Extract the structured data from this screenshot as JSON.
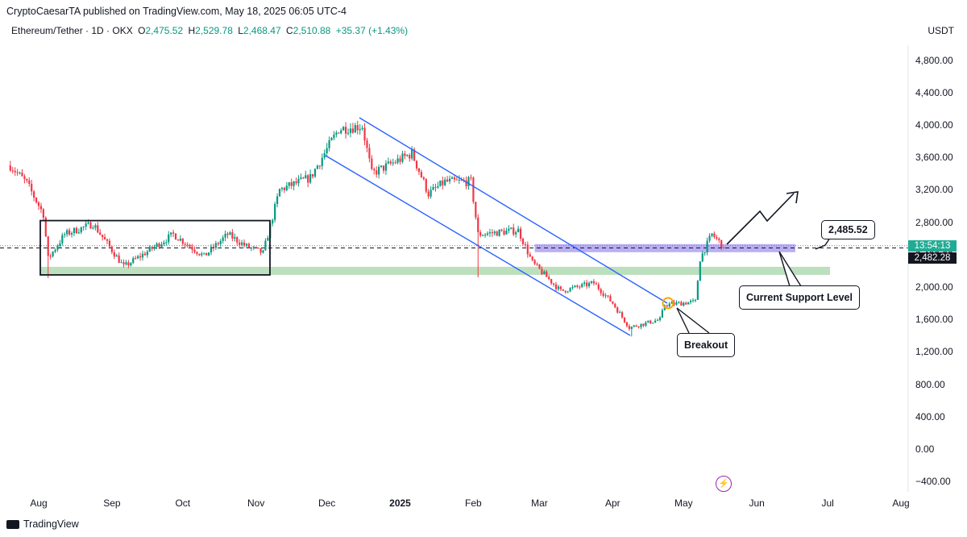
{
  "header": {
    "published": "CryptoCaesarTA published on TradingView.com, May 18, 2025 06:05 UTC-4",
    "symbol": "Ethereum/Tether · 1D · OKX",
    "open_label": "O",
    "open": "2,475.52",
    "high_label": "H",
    "high": "2,529.78",
    "low_label": "L",
    "low": "2,468.47",
    "close_label": "C",
    "close": "2,510.88",
    "change": "+35.37 (+1.43%)",
    "currency": "USDT"
  },
  "price_badges": {
    "countdown": "13:54:13",
    "last_price": "2,482.28"
  },
  "footer": {
    "brand": "TradingView"
  },
  "colors": {
    "up": "#089981",
    "down": "#f23645",
    "channel": "#2962ff",
    "zone_purple": "#9c8cf0",
    "zone_green": "#a5d6a7",
    "accent_badge": "#22ab94"
  },
  "chart_data": {
    "type": "candlestick",
    "ylim": [
      -400,
      5200
    ],
    "y_ticks": [
      "4,800.00",
      "4,400.00",
      "4,000.00",
      "3,600.00",
      "3,200.00",
      "2,800.00",
      "2,400.00",
      "2,000.00",
      "1,600.00",
      "1,200.00",
      "800.00",
      "400.00",
      "0.00",
      "−400.00"
    ],
    "y_tick_values": [
      4800,
      4400,
      4000,
      3600,
      3200,
      2800,
      2400,
      2000,
      1600,
      1200,
      800,
      400,
      0,
      -400
    ],
    "x_ticks": [
      {
        "label": "Aug",
        "date": "2024-08-01"
      },
      {
        "label": "Sep",
        "date": "2024-09-01"
      },
      {
        "label": "Oct",
        "date": "2024-10-01"
      },
      {
        "label": "Nov",
        "date": "2024-11-01"
      },
      {
        "label": "Dec",
        "date": "2024-12-01"
      },
      {
        "label": "2025",
        "date": "2025-01-01",
        "bold": true
      },
      {
        "label": "Feb",
        "date": "2025-02-01"
      },
      {
        "label": "Mar",
        "date": "2025-03-01"
      },
      {
        "label": "Apr",
        "date": "2025-04-01"
      },
      {
        "label": "May",
        "date": "2025-05-01"
      },
      {
        "label": "Jun",
        "date": "2025-06-01"
      },
      {
        "label": "Jul",
        "date": "2025-07-01"
      },
      {
        "label": "Aug",
        "date": "2025-08-01"
      }
    ],
    "price_anchors": [
      {
        "date": "2024-07-20",
        "price": 3500
      },
      {
        "date": "2024-07-27",
        "price": 3280
      },
      {
        "date": "2024-08-03",
        "price": 2900
      },
      {
        "date": "2024-08-05",
        "price": 2350
      },
      {
        "date": "2024-08-12",
        "price": 2650
      },
      {
        "date": "2024-08-24",
        "price": 2780
      },
      {
        "date": "2024-09-06",
        "price": 2250
      },
      {
        "date": "2024-09-14",
        "price": 2400
      },
      {
        "date": "2024-09-27",
        "price": 2650
      },
      {
        "date": "2024-10-10",
        "price": 2380
      },
      {
        "date": "2024-10-20",
        "price": 2650
      },
      {
        "date": "2024-10-28",
        "price": 2500
      },
      {
        "date": "2024-11-04",
        "price": 2420
      },
      {
        "date": "2024-11-11",
        "price": 3200
      },
      {
        "date": "2024-11-24",
        "price": 3350
      },
      {
        "date": "2024-12-06",
        "price": 3950
      },
      {
        "date": "2024-12-16",
        "price": 3990
      },
      {
        "date": "2024-12-20",
        "price": 3400
      },
      {
        "date": "2025-01-06",
        "price": 3650
      },
      {
        "date": "2025-01-13",
        "price": 3150
      },
      {
        "date": "2025-01-20",
        "price": 3300
      },
      {
        "date": "2025-01-31",
        "price": 3300
      },
      {
        "date": "2025-02-03",
        "price": 2650
      },
      {
        "date": "2025-02-20",
        "price": 2700
      },
      {
        "date": "2025-02-26",
        "price": 2300
      },
      {
        "date": "2025-03-10",
        "price": 1950
      },
      {
        "date": "2025-03-24",
        "price": 2050
      },
      {
        "date": "2025-04-01",
        "price": 1800
      },
      {
        "date": "2025-04-08",
        "price": 1500
      },
      {
        "date": "2025-04-21",
        "price": 1600
      },
      {
        "date": "2025-04-23",
        "price": 1780
      },
      {
        "date": "2025-05-06",
        "price": 1820
      },
      {
        "date": "2025-05-08",
        "price": 2350
      },
      {
        "date": "2025-05-13",
        "price": 2650
      },
      {
        "date": "2025-05-18",
        "price": 2500
      }
    ],
    "wick_extremes": [
      {
        "date": "2024-08-05",
        "low": 2110
      },
      {
        "date": "2025-02-03",
        "low": 2120
      },
      {
        "date": "2025-04-09",
        "low": 1390
      }
    ],
    "last_price": 2482.28,
    "current_price_line": 2482.28,
    "annotations": {
      "range_box": {
        "from": "2024-08-01",
        "to": "2024-11-05",
        "low": 2150,
        "high": 2820
      },
      "support_zone_green": {
        "from": "2024-08-01",
        "to": "2025-06-15",
        "low": 2150,
        "high": 2250
      },
      "support_zone_purple": {
        "from": "2025-02-27",
        "to": "2025-05-30",
        "low": 2430,
        "high": 2530
      },
      "channel_upper": [
        {
          "date": "2024-12-10",
          "price": 4100
        },
        {
          "date": "2025-04-28",
          "price": 1800
        }
      ],
      "channel_lower": [
        {
          "date": "2024-12-01",
          "price": 3600
        },
        {
          "date": "2025-04-10",
          "price": 1400
        }
      ],
      "breakout_marker": {
        "date": "2025-04-23",
        "price": 1790
      },
      "projection_arrow": [
        {
          "date": "2025-05-20",
          "price": 2540
        },
        {
          "date": "2025-06-01",
          "price": 2980
        },
        {
          "date": "2025-06-06",
          "price": 2830
        },
        {
          "date": "2025-06-19",
          "price": 3170
        }
      ],
      "price_label": "2,485.52",
      "support_label": "Current Support Level",
      "breakout_label": "Breakout"
    }
  }
}
